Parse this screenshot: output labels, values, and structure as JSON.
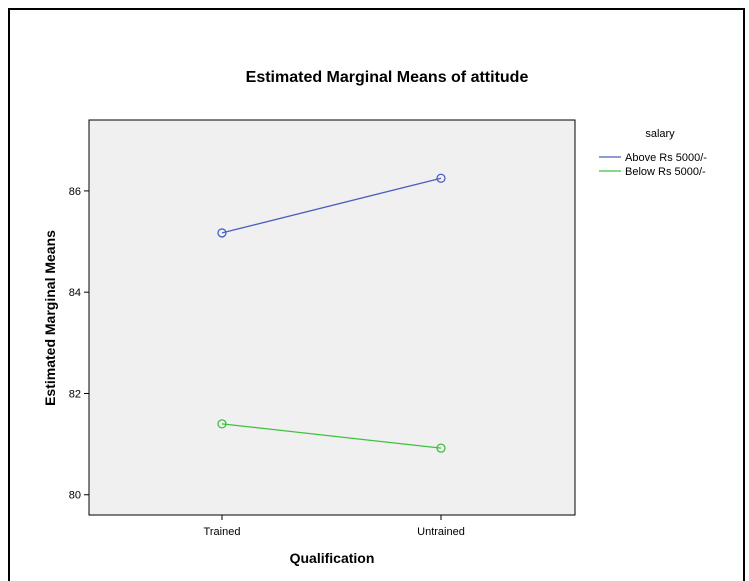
{
  "chart_data": {
    "type": "line",
    "title": "Estimated Marginal Means of attitude",
    "xlabel": "Qualification",
    "ylabel": "Estimated Marginal Means",
    "categories": [
      "Trained",
      "Untrained"
    ],
    "yticks": [
      80,
      82,
      84,
      86
    ],
    "ylim": [
      79.6,
      87.4
    ],
    "grid": false,
    "legend": {
      "title": "salary",
      "placement": "right"
    },
    "series": [
      {
        "name": "Above Rs 5000/-",
        "color": "#4a5fc1",
        "values": [
          85.17,
          86.25
        ]
      },
      {
        "name": "Below Rs 5000/-",
        "color": "#3ec13e",
        "values": [
          81.4,
          80.92
        ]
      }
    ]
  }
}
